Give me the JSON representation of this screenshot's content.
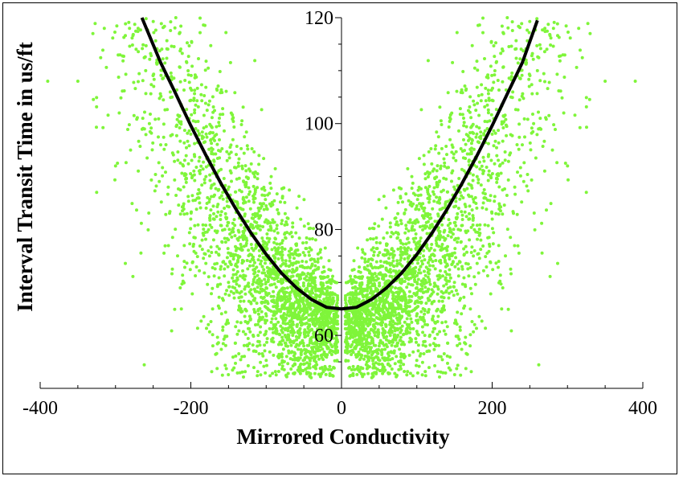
{
  "chart_data": {
    "type": "scatter",
    "title": "",
    "xlabel": "Mirrored Conductivity",
    "ylabel": "Interval Transit Time in us/ft",
    "xlim": [
      -400,
      400
    ],
    "ylim": [
      50,
      120
    ],
    "x_ticks": [
      -400,
      -200,
      0,
      200,
      400
    ],
    "y_ticks": [
      60,
      80,
      100,
      120
    ],
    "grid": false,
    "legend": "none",
    "point_color": "#7ff53a",
    "curve_color": "#000000",
    "scatter_series": {
      "description_points": [
        [
          -390,
          108
        ],
        [
          -350,
          108
        ],
        [
          -330,
          117
        ],
        [
          -325,
          87
        ],
        [
          -300,
          92
        ],
        [
          -295,
          102
        ],
        [
          -280,
          95
        ],
        [
          -270,
          118
        ],
        [
          -260,
          110
        ],
        [
          -255,
          100
        ],
        [
          -245,
          112
        ],
        [
          -240,
          96
        ],
        [
          -230,
          88
        ],
        [
          -225,
          105
        ],
        [
          -220,
          120
        ],
        [
          -210,
          92
        ],
        [
          -205,
          83
        ],
        [
          -200,
          98
        ],
        [
          -190,
          86
        ],
        [
          -185,
          78
        ],
        [
          -180,
          90
        ],
        [
          -175,
          75
        ],
        [
          -170,
          82
        ],
        [
          -160,
          73
        ],
        [
          -155,
          80
        ],
        [
          -150,
          70
        ],
        [
          -140,
          76
        ],
        [
          -135,
          68
        ],
        [
          -130,
          74
        ],
        [
          -120,
          66
        ],
        [
          -115,
          71
        ],
        [
          -110,
          64
        ],
        [
          -100,
          69
        ],
        [
          -90,
          62
        ],
        [
          -80,
          67
        ],
        [
          -70,
          60
        ],
        [
          -60,
          65
        ],
        [
          -50,
          58
        ],
        [
          -40,
          63
        ],
        [
          -30,
          61
        ],
        [
          -20,
          66
        ],
        [
          -10,
          64
        ],
        [
          10,
          64
        ],
        [
          20,
          66
        ],
        [
          30,
          61
        ],
        [
          40,
          63
        ],
        [
          50,
          58
        ],
        [
          60,
          65
        ],
        [
          70,
          60
        ],
        [
          80,
          67
        ],
        [
          90,
          62
        ],
        [
          100,
          69
        ],
        [
          110,
          64
        ],
        [
          115,
          71
        ],
        [
          120,
          66
        ],
        [
          130,
          74
        ],
        [
          135,
          68
        ],
        [
          140,
          76
        ],
        [
          150,
          70
        ],
        [
          155,
          80
        ],
        [
          160,
          73
        ],
        [
          170,
          82
        ],
        [
          175,
          75
        ],
        [
          180,
          90
        ],
        [
          185,
          78
        ],
        [
          190,
          86
        ],
        [
          200,
          98
        ],
        [
          205,
          83
        ],
        [
          210,
          92
        ],
        [
          220,
          120
        ],
        [
          225,
          105
        ],
        [
          230,
          88
        ],
        [
          240,
          96
        ],
        [
          245,
          112
        ],
        [
          255,
          100
        ],
        [
          260,
          110
        ],
        [
          270,
          118
        ],
        [
          280,
          95
        ],
        [
          295,
          102
        ],
        [
          300,
          92
        ],
        [
          325,
          87
        ],
        [
          330,
          117
        ],
        [
          350,
          108
        ],
        [
          390,
          108
        ]
      ]
    },
    "fit_curve": {
      "x": [
        -265,
        -240,
        -220,
        -200,
        -180,
        -160,
        -140,
        -120,
        -100,
        -80,
        -60,
        -40,
        -20,
        0,
        20,
        40,
        60,
        80,
        100,
        120,
        140,
        160,
        180,
        200,
        220,
        240,
        260
      ],
      "y": [
        120,
        111.5,
        105.6,
        99.6,
        94.0,
        88.7,
        83.8,
        79.3,
        75.3,
        71.8,
        69.0,
        66.8,
        65.3,
        65.0,
        65.3,
        66.8,
        69.0,
        71.8,
        75.3,
        79.3,
        83.8,
        88.7,
        94.0,
        99.6,
        105.6,
        111.5,
        119.5
      ]
    }
  }
}
